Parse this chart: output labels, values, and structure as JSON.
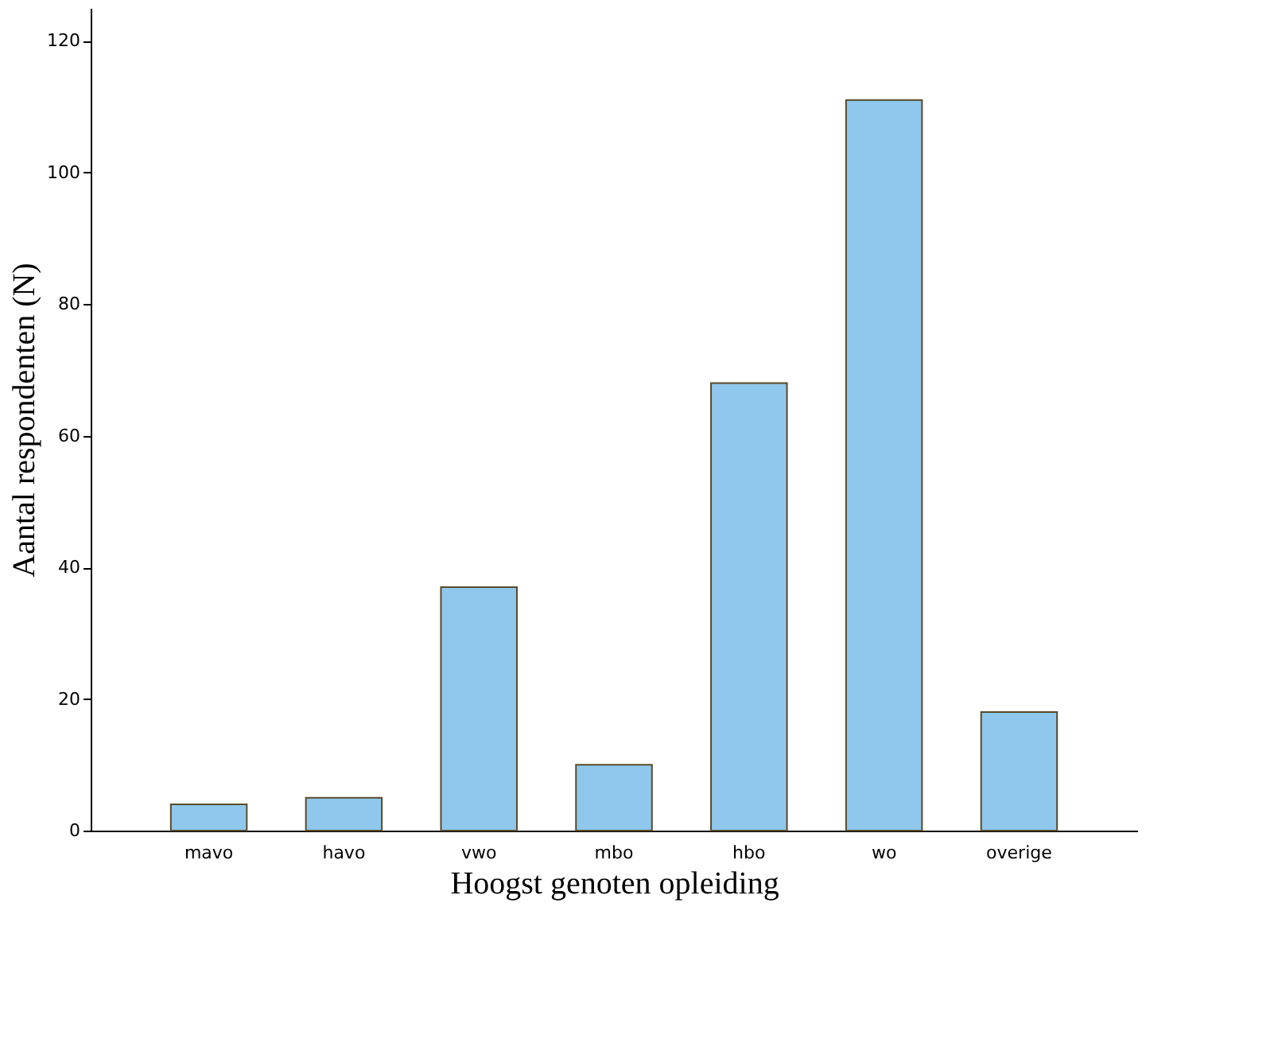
{
  "chart_data": {
    "type": "bar",
    "xlabel": "Hoogst genoten opleiding",
    "ylabel": "Aantal respondenten (N)",
    "categories": [
      "mavo",
      "havo",
      "vwo",
      "mbo",
      "hbo",
      "wo",
      "overige"
    ],
    "values": [
      4,
      5,
      37,
      10,
      68,
      111,
      18
    ],
    "color": "#8fc8ec",
    "ylim": [
      0,
      125
    ],
    "yticks": [
      0,
      20,
      40,
      60,
      80,
      100,
      120
    ],
    "grid": false
  }
}
